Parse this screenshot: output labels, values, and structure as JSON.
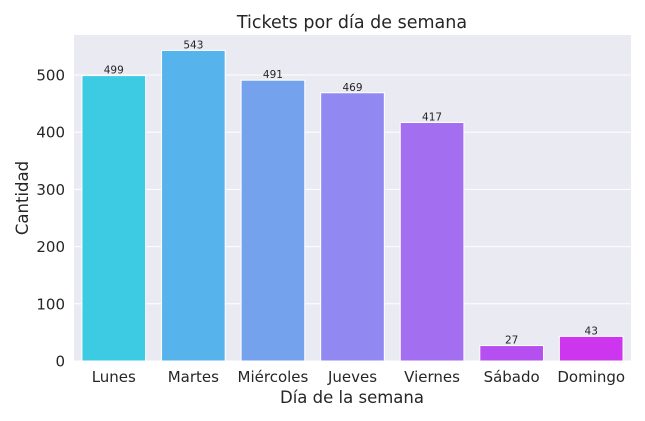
{
  "chart_data": {
    "type": "bar",
    "title": "Tickets por día de semana",
    "xlabel": "Día de la semana",
    "ylabel": "Cantidad",
    "categories": [
      "Lunes",
      "Martes",
      "Miércoles",
      "Jueves",
      "Viernes",
      "Sábado",
      "Domingo"
    ],
    "values": [
      499,
      543,
      491,
      469,
      417,
      27,
      43
    ],
    "data_labels": [
      "499",
      "543",
      "491",
      "469",
      "417",
      "27",
      "43"
    ],
    "ylim": [
      0,
      570
    ],
    "yticks": [
      0,
      100,
      200,
      300,
      400,
      500
    ],
    "grid": true,
    "colors": [
      "#3ccbe3",
      "#57b3ec",
      "#74a2ec",
      "#9189f1",
      "#a36eef",
      "#b54ff0",
      "#cb36ee"
    ],
    "background": "#eaeaf2"
  }
}
